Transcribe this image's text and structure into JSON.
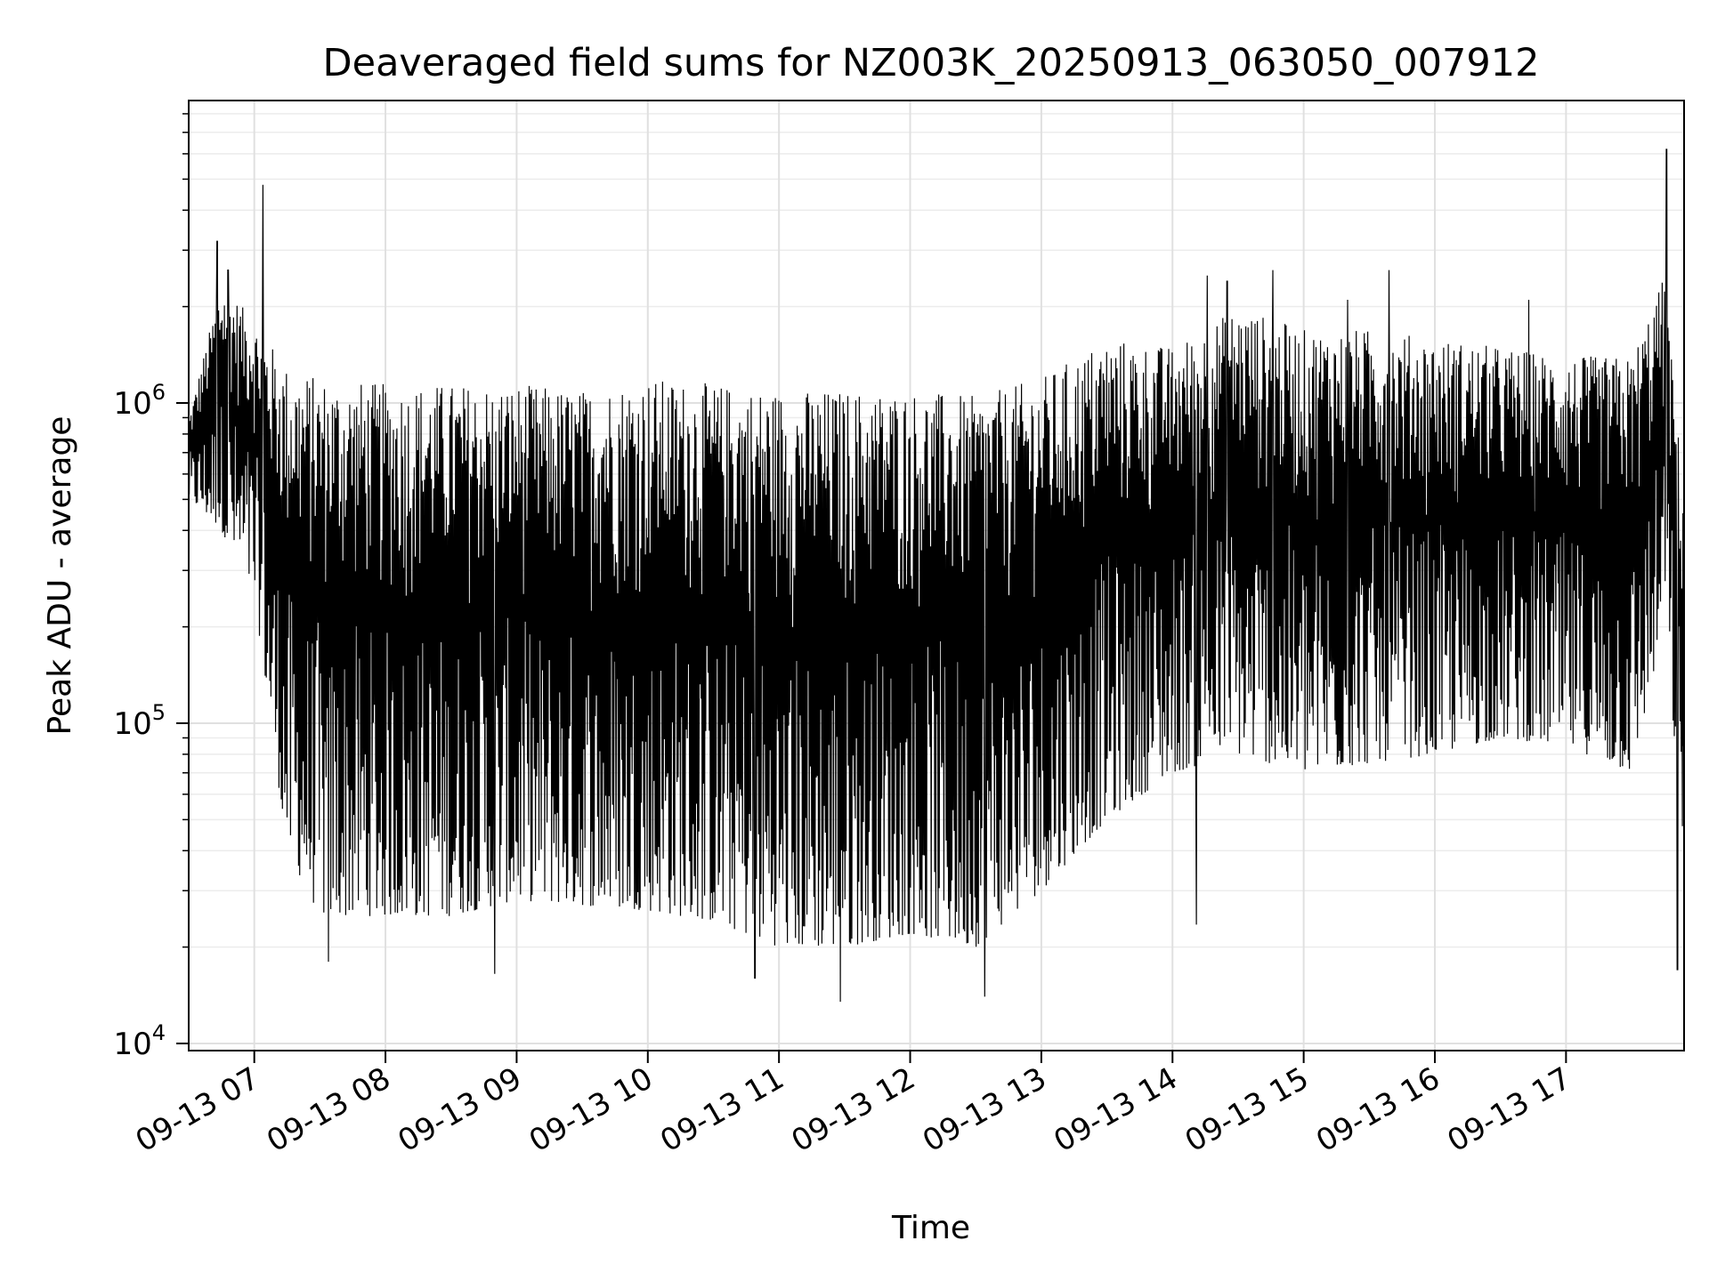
{
  "chart_data": {
    "type": "line",
    "title": "Deaveraged field sums for NZ003K_20250913_063050_007912",
    "xlabel": "Time",
    "ylabel": "Peak ADU - average",
    "yscale": "log",
    "ylim": [
      9500,
      8800000
    ],
    "xlim": [
      "2025-09-13 06:30:00",
      "2025-09-13 17:54:00"
    ],
    "grid": true,
    "line_color": "#000000",
    "x_ticks": [
      "09-13 07",
      "09-13 08",
      "09-13 09",
      "09-13 10",
      "09-13 11",
      "09-13 12",
      "09-13 13",
      "09-13 14",
      "09-13 15",
      "09-13 16",
      "09-13 17"
    ],
    "y_ticks": [
      {
        "value": 10000,
        "base": "10",
        "exp": "4"
      },
      {
        "value": 100000,
        "base": "10",
        "exp": "5"
      },
      {
        "value": 1000000,
        "base": "10",
        "exp": "6"
      }
    ],
    "x": [
      "2025-09-13 06:30",
      "2025-09-13 06:45",
      "2025-09-13 07:00",
      "2025-09-13 07:15",
      "2025-09-13 07:30",
      "2025-09-13 08:00",
      "2025-09-13 08:30",
      "2025-09-13 09:00",
      "2025-09-13 09:30",
      "2025-09-13 10:00",
      "2025-09-13 10:30",
      "2025-09-13 11:00",
      "2025-09-13 11:30",
      "2025-09-13 12:00",
      "2025-09-13 12:30",
      "2025-09-13 13:00",
      "2025-09-13 13:30",
      "2025-09-13 14:00",
      "2025-09-13 14:30",
      "2025-09-13 15:00",
      "2025-09-13 15:30",
      "2025-09-13 16:00",
      "2025-09-13 16:30",
      "2025-09-13 17:00",
      "2025-09-13 17:30",
      "2025-09-13 17:45",
      "2025-09-13 17:54"
    ],
    "upper_envelope": [
      900000,
      2400000,
      1800000,
      1300000,
      1200000,
      1150000,
      1150000,
      1150000,
      1100000,
      1200000,
      1150000,
      1100000,
      1100000,
      1100000,
      1050000,
      1200000,
      1600000,
      1500000,
      2000000,
      1700000,
      1700000,
      1600000,
      1500000,
      1400000,
      1400000,
      2500000,
      500000
    ],
    "lower_envelope": [
      500000,
      400000,
      250000,
      40000,
      25000,
      25000,
      25000,
      28000,
      27000,
      26000,
      24000,
      20000,
      20000,
      22000,
      20000,
      30000,
      50000,
      70000,
      80000,
      70000,
      75000,
      80000,
      90000,
      85000,
      70000,
      200000,
      40000
    ],
    "spikes": [
      {
        "x": "2025-09-13 06:43",
        "y": 3200000
      },
      {
        "x": "2025-09-13 06:48",
        "y": 2600000
      },
      {
        "x": "2025-09-13 07:04",
        "y": 4800000
      },
      {
        "x": "2025-09-13 14:16",
        "y": 2500000
      },
      {
        "x": "2025-09-13 14:25",
        "y": 2400000
      },
      {
        "x": "2025-09-13 14:46",
        "y": 2600000
      },
      {
        "x": "2025-09-13 15:20",
        "y": 2100000
      },
      {
        "x": "2025-09-13 15:39",
        "y": 2600000
      },
      {
        "x": "2025-09-13 16:43",
        "y": 2100000
      },
      {
        "x": "2025-09-13 17:46",
        "y": 6200000
      }
    ],
    "dips": [
      {
        "x": "2025-09-13 07:34",
        "y": 18000
      },
      {
        "x": "2025-09-13 08:50",
        "y": 16500
      },
      {
        "x": "2025-09-13 10:49",
        "y": 16000
      },
      {
        "x": "2025-09-13 11:28",
        "y": 13500
      },
      {
        "x": "2025-09-13 12:34",
        "y": 14000
      },
      {
        "x": "2025-09-13 14:11",
        "y": 23500
      },
      {
        "x": "2025-09-13 17:51",
        "y": 17000
      }
    ]
  }
}
